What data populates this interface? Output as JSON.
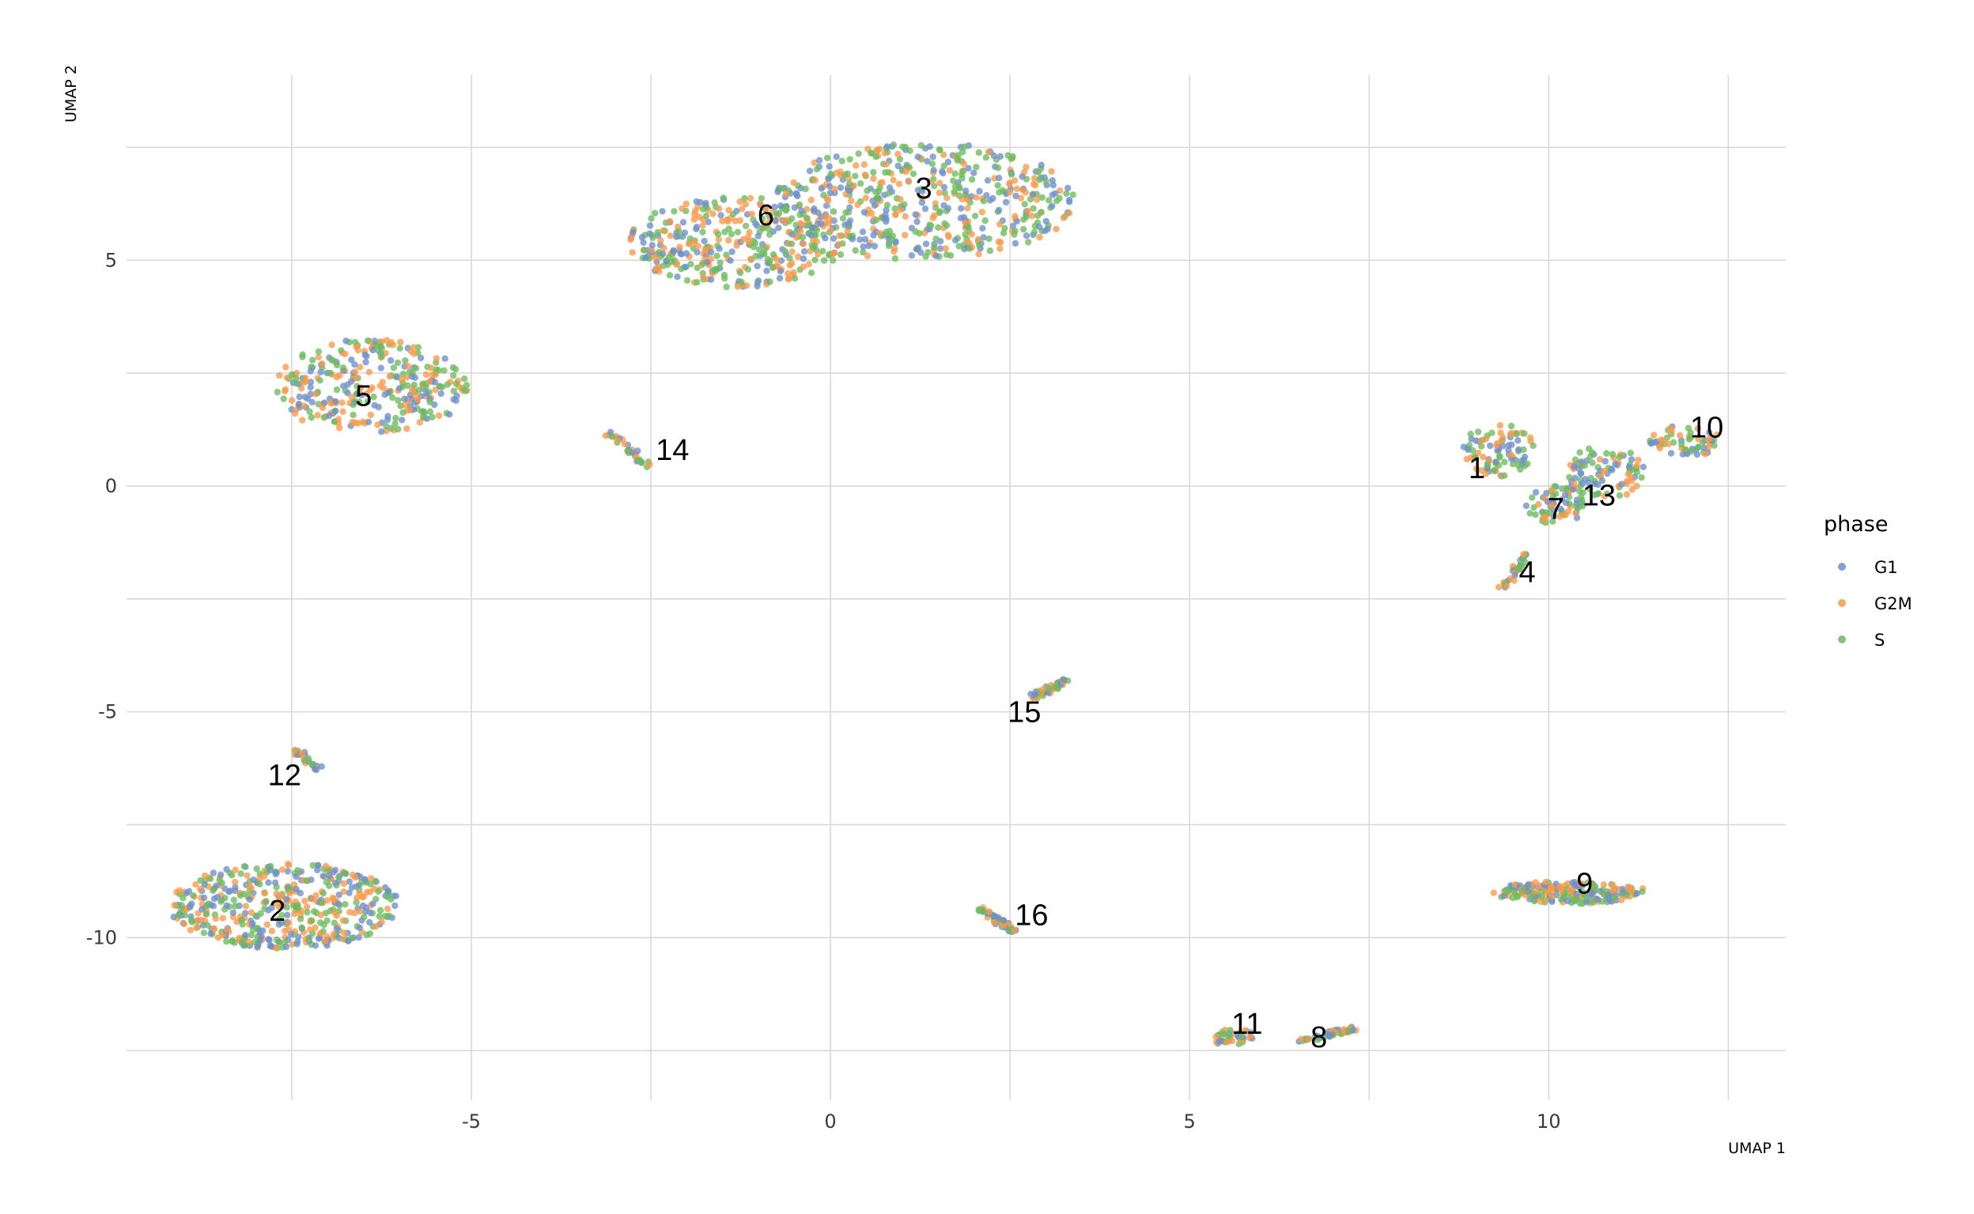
{
  "chart_data": {
    "type": "scatter",
    "xlabel": "UMAP 1",
    "ylabel": "UMAP 2",
    "xlim": [
      -9.8,
      13.3
    ],
    "ylim": [
      -13.6,
      9.1
    ],
    "x_ticks": [
      -5,
      0,
      5,
      10
    ],
    "y_ticks": [
      5,
      0,
      -5,
      -10
    ],
    "x_tick_labels": [
      "-5",
      "0",
      "5",
      "10"
    ],
    "y_tick_labels": [
      "5",
      "0",
      "-5",
      "-10"
    ],
    "grid": true,
    "legend": {
      "title": "phase",
      "position": "right",
      "entries": [
        {
          "name": "G1",
          "color": "#6E8FC9"
        },
        {
          "name": "G2M",
          "color": "#F79A4B"
        },
        {
          "name": "S",
          "color": "#6DBB5E"
        }
      ]
    },
    "clusters": [
      {
        "label": "1",
        "label_x": 9.0,
        "label_y": 0.4,
        "shape": "blob",
        "cx": 9.3,
        "cy": 0.8,
        "rx": 0.5,
        "ry": 0.6,
        "n": 90
      },
      {
        "label": "2",
        "label_x": -7.7,
        "label_y": -9.4,
        "shape": "blob",
        "cx": -7.6,
        "cy": -9.3,
        "rx": 1.6,
        "ry": 0.95,
        "n": 480
      },
      {
        "label": "3",
        "label_x": 1.3,
        "label_y": 6.6,
        "shape": "blob",
        "cx": 1.3,
        "cy": 6.3,
        "rx": 2.1,
        "ry": 1.3,
        "n": 520
      },
      {
        "label": "4",
        "label_x": 9.7,
        "label_y": -1.9,
        "shape": "line",
        "x1": 9.35,
        "y1": -2.3,
        "x2": 9.7,
        "y2": -1.5,
        "n": 30
      },
      {
        "label": "5",
        "label_x": -6.5,
        "label_y": 2.0,
        "shape": "blob",
        "cx": -6.4,
        "cy": 2.2,
        "rx": 1.35,
        "ry": 1.05,
        "n": 320
      },
      {
        "label": "6",
        "label_x": -0.9,
        "label_y": 6.0,
        "shape": "blob",
        "cx": -1.3,
        "cy": 5.4,
        "rx": 1.5,
        "ry": 1.0,
        "n": 360
      },
      {
        "label": "7",
        "label_x": 10.1,
        "label_y": -0.5,
        "shape": "blob",
        "cx": 10.1,
        "cy": -0.4,
        "rx": 0.45,
        "ry": 0.45,
        "n": 70
      },
      {
        "label": "8",
        "label_x": 6.8,
        "label_y": -12.2,
        "shape": "line",
        "x1": 6.5,
        "y1": -12.3,
        "x2": 7.3,
        "y2": -12.0,
        "n": 45
      },
      {
        "label": "9",
        "label_x": 10.5,
        "label_y": -8.8,
        "shape": "blob",
        "cx": 10.3,
        "cy": -9.0,
        "rx": 1.1,
        "ry": 0.25,
        "n": 200
      },
      {
        "label": "10",
        "label_x": 12.2,
        "label_y": 1.3,
        "shape": "blob",
        "cx": 11.9,
        "cy": 1.0,
        "rx": 0.5,
        "ry": 0.35,
        "n": 60
      },
      {
        "label": "11",
        "label_x": 5.8,
        "label_y": -11.9,
        "shape": "blob",
        "cx": 5.6,
        "cy": -12.2,
        "rx": 0.3,
        "ry": 0.2,
        "n": 45
      },
      {
        "label": "12",
        "label_x": -7.6,
        "label_y": -6.4,
        "shape": "line",
        "x1": -7.5,
        "y1": -5.8,
        "x2": -7.1,
        "y2": -6.3,
        "n": 25
      },
      {
        "label": "13",
        "label_x": 10.7,
        "label_y": -0.2,
        "shape": "blob",
        "cx": 10.8,
        "cy": 0.3,
        "rx": 0.55,
        "ry": 0.6,
        "n": 90
      },
      {
        "label": "14",
        "label_x": -2.2,
        "label_y": 0.8,
        "shape": "line",
        "x1": -3.1,
        "y1": 1.2,
        "x2": -2.5,
        "y2": 0.4,
        "n": 30
      },
      {
        "label": "15",
        "label_x": 2.7,
        "label_y": -5.0,
        "shape": "line",
        "x1": 2.8,
        "y1": -4.7,
        "x2": 3.3,
        "y2": -4.3,
        "n": 50
      },
      {
        "label": "16",
        "label_x": 2.8,
        "label_y": -9.5,
        "shape": "line",
        "x1": 2.05,
        "y1": -9.35,
        "x2": 2.55,
        "y2": -9.85,
        "n": 50
      }
    ]
  }
}
